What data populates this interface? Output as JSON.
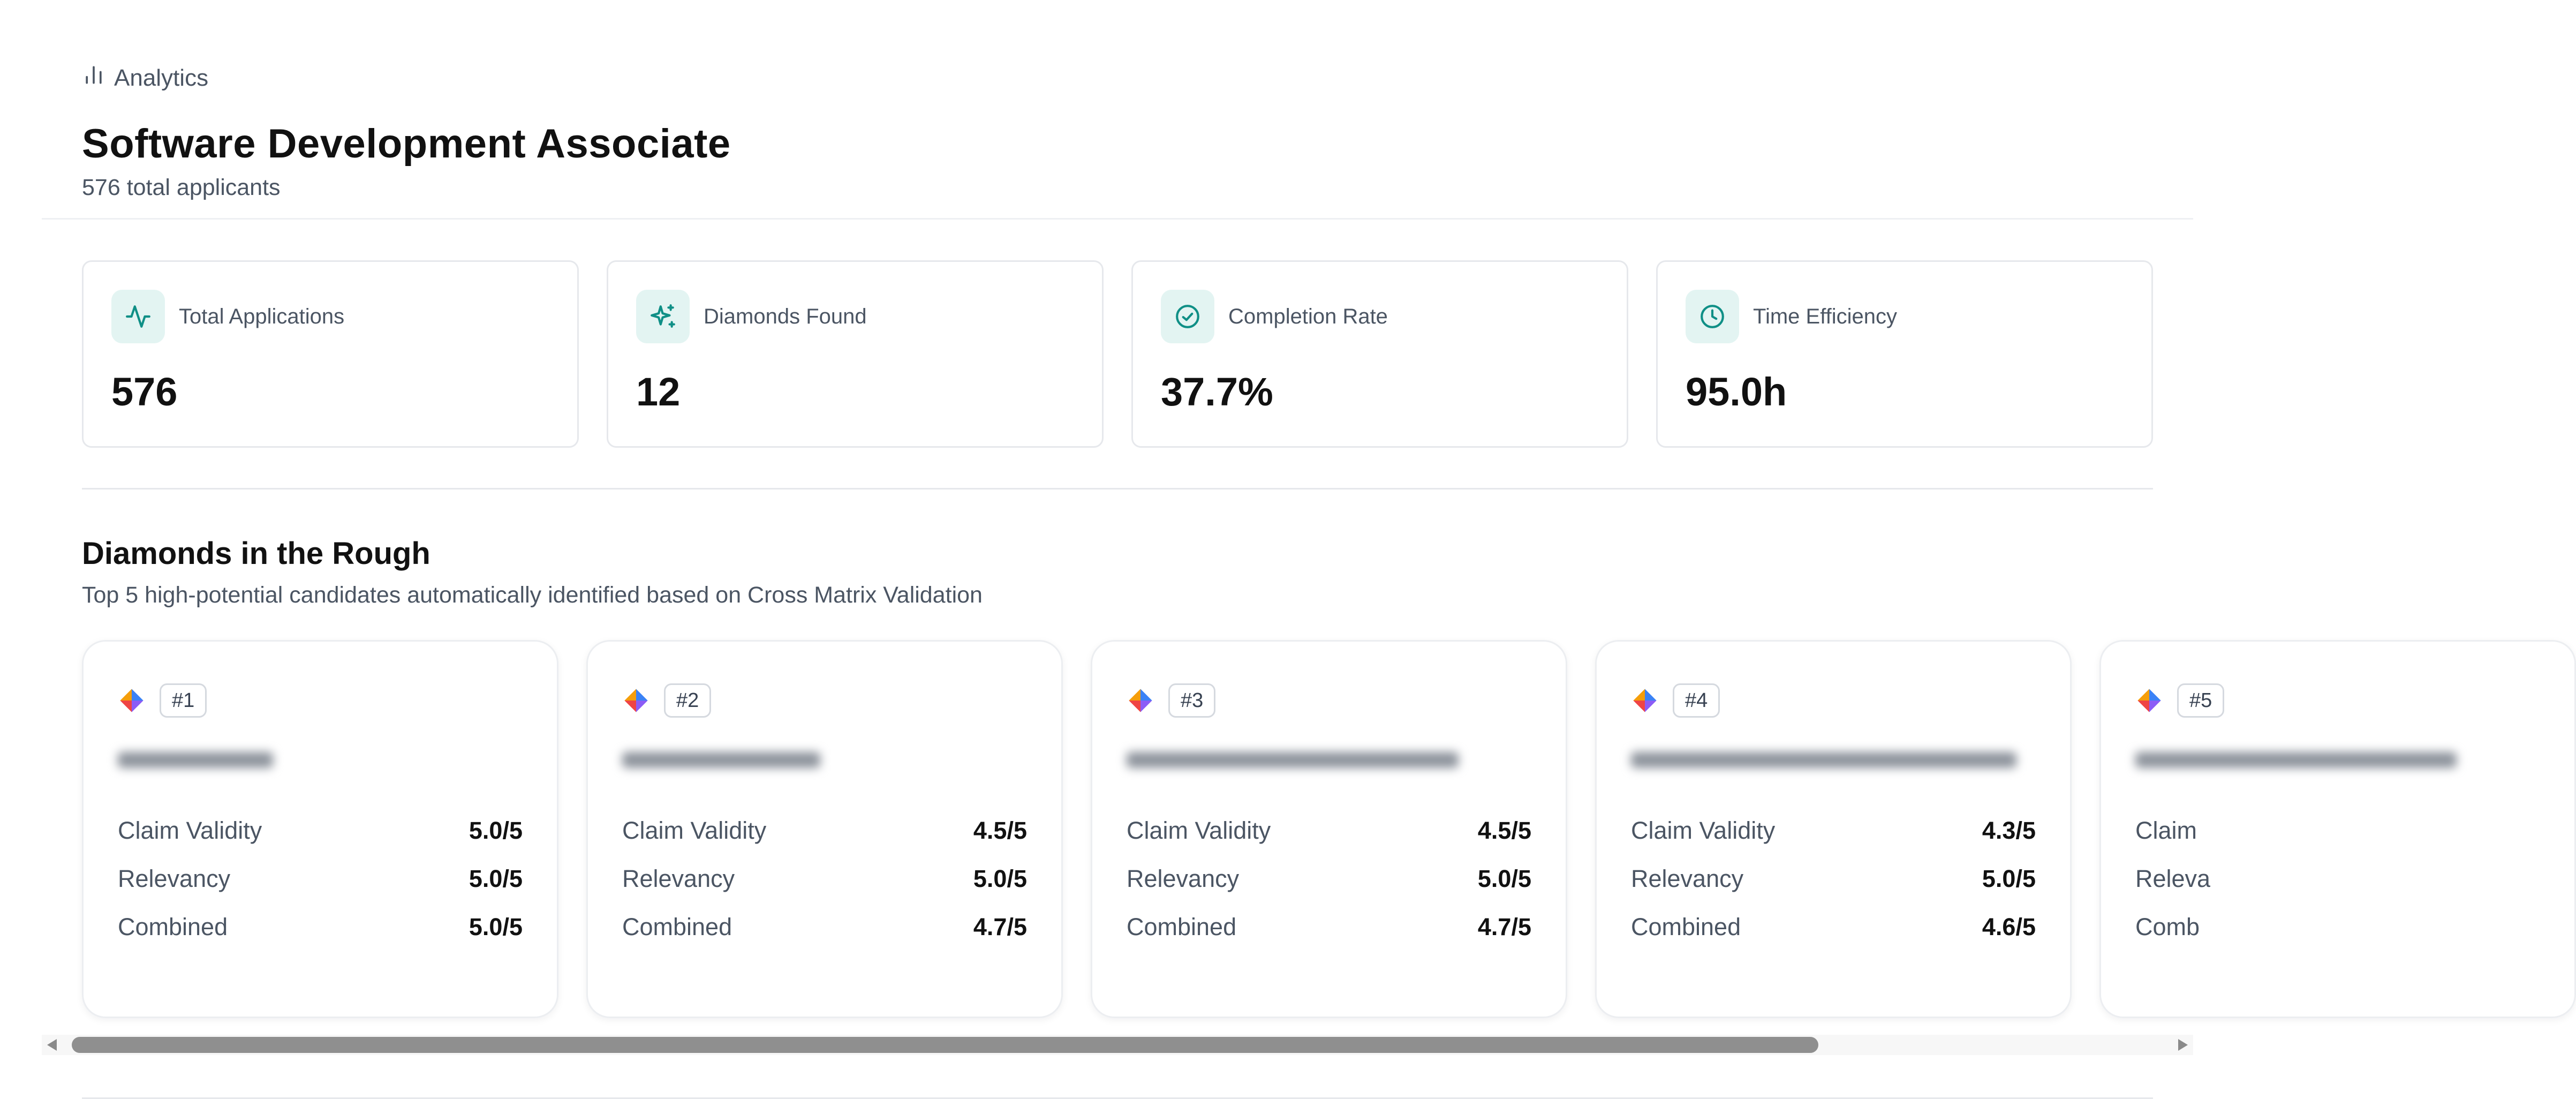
{
  "breadcrumb": {
    "icon": "bar-chart-icon",
    "label": "Analytics"
  },
  "job": {
    "title": "Software Development Associate",
    "subtitle": "576 total applicants"
  },
  "theme": {
    "accent": "#0f8f86",
    "accent_bg": "#e3f4f2"
  },
  "stats": [
    {
      "icon": "activity-icon",
      "label": "Total Applications",
      "value": "576"
    },
    {
      "icon": "sparkles-icon",
      "label": "Diamonds Found",
      "value": "12"
    },
    {
      "icon": "check-circle-icon",
      "label": "Completion Rate",
      "value": "37.7%"
    },
    {
      "icon": "clock-icon",
      "label": "Time Efficiency",
      "value": "95.0h"
    }
  ],
  "diamonds": {
    "title": "Diamonds in the Rough",
    "subtitle": "Top 5 high-potential candidates automatically identified based on Cross Matrix Validation",
    "candidates": [
      {
        "rank": "#1",
        "name": "",
        "metrics": [
          {
            "label": "Claim Validity",
            "value": "5.0/5"
          },
          {
            "label": "Relevancy",
            "value": "5.0/5"
          },
          {
            "label": "Combined",
            "value": "5.0/5"
          }
        ]
      },
      {
        "rank": "#2",
        "name": "",
        "metrics": [
          {
            "label": "Claim Validity",
            "value": "4.5/5"
          },
          {
            "label": "Relevancy",
            "value": "5.0/5"
          },
          {
            "label": "Combined",
            "value": "4.7/5"
          }
        ]
      },
      {
        "rank": "#3",
        "name": "",
        "metrics": [
          {
            "label": "Claim Validity",
            "value": "4.5/5"
          },
          {
            "label": "Relevancy",
            "value": "5.0/5"
          },
          {
            "label": "Combined",
            "value": "4.7/5"
          }
        ]
      },
      {
        "rank": "#4",
        "name": "",
        "metrics": [
          {
            "label": "Claim Validity",
            "value": "4.3/5"
          },
          {
            "label": "Relevancy",
            "value": "5.0/5"
          },
          {
            "label": "Combined",
            "value": "4.6/5"
          }
        ]
      },
      {
        "rank": "#5",
        "name": "",
        "metrics": [
          {
            "label": "Claim",
            "value": ""
          },
          {
            "label": "Releva",
            "value": ""
          },
          {
            "label": "Comb",
            "value": ""
          }
        ]
      }
    ]
  },
  "scroll": {
    "position_fraction": 0.0,
    "visible_fraction": 0.835
  }
}
